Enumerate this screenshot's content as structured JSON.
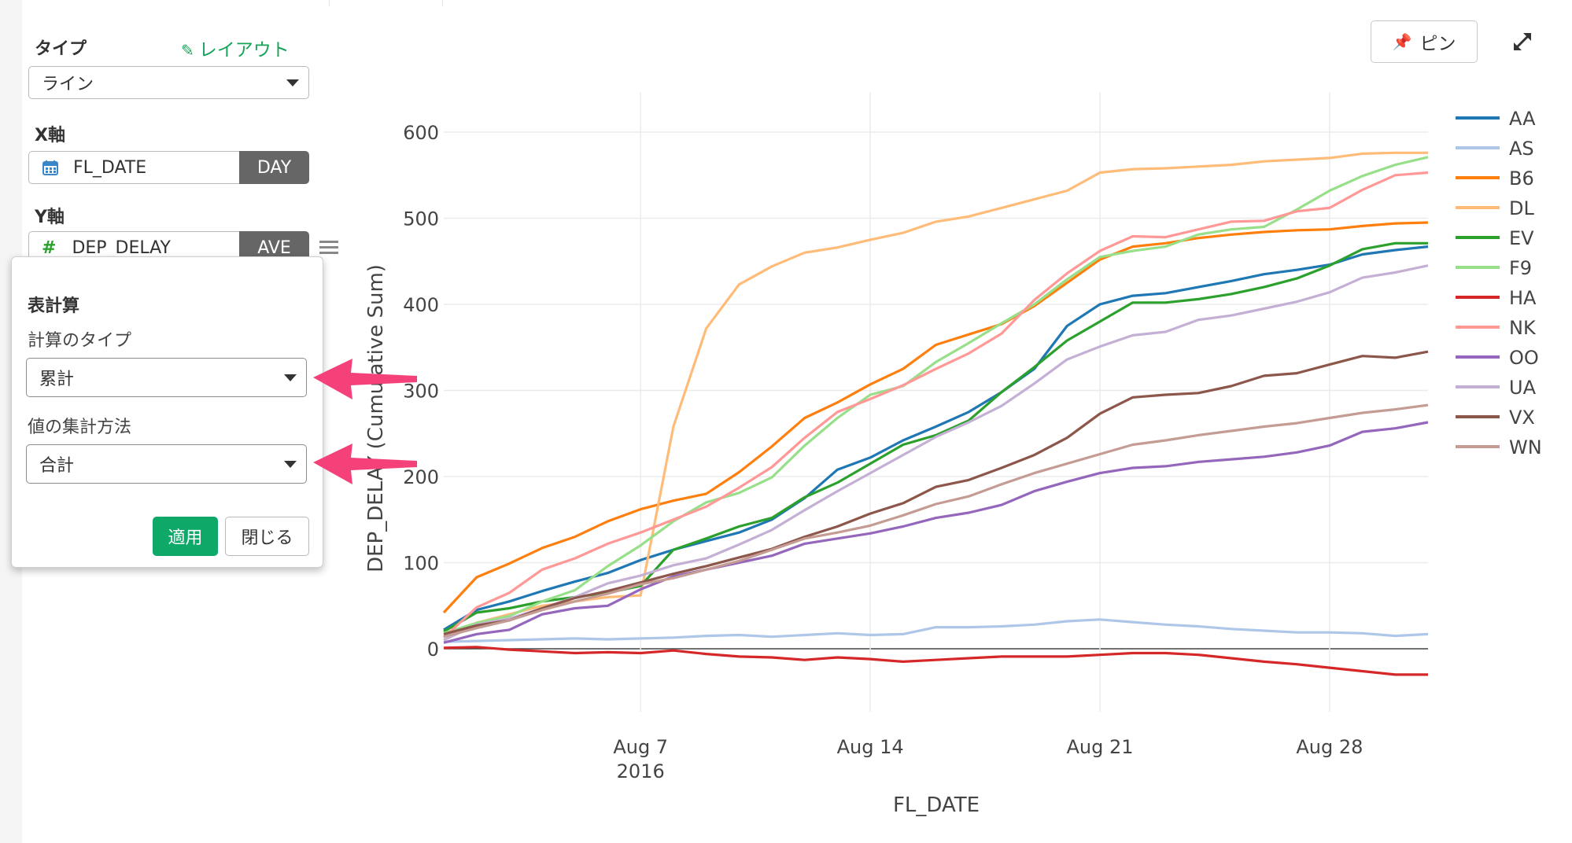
{
  "config": {
    "type_label": "タイプ",
    "layout_link": "レイアウト",
    "type_value": "ライン",
    "x_axis_label": "X軸",
    "x_field": "FL_DATE",
    "x_unit": "DAY",
    "y_axis_label": "Y軸",
    "y_field": "DEP_DELAY",
    "y_agg": "AVE"
  },
  "popup": {
    "title": "表計算",
    "calc_type_label": "計算のタイプ",
    "calc_type_value": "累計",
    "agg_method_label": "値の集計方法",
    "agg_method_value": "合計",
    "apply_button": "適用",
    "close_button": "閉じる"
  },
  "toolbar": {
    "pin_label": "ピン"
  },
  "colors": {
    "accent_green": "#17a35a",
    "apply_button": "#0ea869",
    "arrow": "#f5417a"
  },
  "chart_data": {
    "type": "line",
    "xlabel": "FL_DATE",
    "ylabel": "DEP_DELAY (Cumulative Sum)",
    "x_ticks": [
      "Aug 7",
      "Aug 14",
      "Aug 21",
      "Aug 28"
    ],
    "x_tick_sublabel": "2016",
    "y_ticks": [
      0,
      100,
      200,
      300,
      400,
      500,
      600
    ],
    "ylim": [
      -40,
      600
    ],
    "x_range": [
      "2016-08-01",
      "2016-08-31"
    ],
    "grid": true,
    "legend_position": "right",
    "dates": [
      "2016-08-01",
      "2016-08-02",
      "2016-08-03",
      "2016-08-04",
      "2016-08-05",
      "2016-08-06",
      "2016-08-07",
      "2016-08-08",
      "2016-08-09",
      "2016-08-10",
      "2016-08-11",
      "2016-08-12",
      "2016-08-13",
      "2016-08-14",
      "2016-08-15",
      "2016-08-16",
      "2016-08-17",
      "2016-08-18",
      "2016-08-19",
      "2016-08-20",
      "2016-08-21",
      "2016-08-22",
      "2016-08-23",
      "2016-08-24",
      "2016-08-25",
      "2016-08-26",
      "2016-08-27",
      "2016-08-28",
      "2016-08-29",
      "2016-08-30",
      "2016-08-31"
    ],
    "series": [
      {
        "name": "AA",
        "color": "#1f77b4",
        "values": [
          22,
          45,
          55,
          67,
          78,
          88,
          103,
          115,
          125,
          135,
          150,
          175,
          208,
          222,
          242,
          258,
          275,
          298,
          325,
          375,
          400,
          410,
          413,
          420,
          427,
          435,
          440,
          446,
          458,
          463,
          467
        ]
      },
      {
        "name": "AS",
        "color": "#aec7e8",
        "values": [
          8,
          9,
          10,
          11,
          12,
          11,
          12,
          13,
          15,
          16,
          14,
          16,
          18,
          16,
          17,
          25,
          25,
          26,
          28,
          32,
          34,
          31,
          28,
          26,
          23,
          21,
          19,
          19,
          18,
          15,
          17
        ]
      },
      {
        "name": "B6",
        "color": "#ff7f0e",
        "values": [
          42,
          83,
          99,
          117,
          130,
          148,
          162,
          172,
          180,
          205,
          235,
          268,
          286,
          307,
          325,
          353,
          365,
          377,
          398,
          425,
          452,
          467,
          471,
          477,
          481,
          484,
          486,
          487,
          491,
          494,
          495
        ]
      },
      {
        "name": "DL",
        "color": "#ffbb78",
        "values": [
          15,
          30,
          40,
          50,
          55,
          60,
          62,
          258,
          372,
          423,
          444,
          460,
          466,
          475,
          483,
          496,
          502,
          512,
          522,
          532,
          553,
          557,
          558,
          560,
          562,
          566,
          568,
          570,
          575,
          576,
          576
        ]
      },
      {
        "name": "EV",
        "color": "#2ca02c",
        "values": [
          20,
          42,
          47,
          55,
          60,
          65,
          73,
          115,
          128,
          142,
          152,
          176,
          193,
          215,
          237,
          248,
          265,
          298,
          327,
          358,
          380,
          402,
          402,
          406,
          412,
          420,
          430,
          445,
          464,
          471,
          471
        ]
      },
      {
        "name": "F9",
        "color": "#98df8a",
        "values": [
          18,
          30,
          38,
          55,
          68,
          96,
          120,
          148,
          170,
          181,
          199,
          236,
          268,
          295,
          305,
          333,
          355,
          378,
          400,
          429,
          455,
          462,
          467,
          481,
          487,
          490,
          510,
          532,
          549,
          562,
          571
        ]
      },
      {
        "name": "HA",
        "color": "#d62728",
        "values": [
          1,
          2,
          -1,
          -3,
          -5,
          -4,
          -5,
          -2,
          -6,
          -9,
          -10,
          -13,
          -10,
          -12,
          -15,
          -13,
          -11,
          -9,
          -9,
          -9,
          -7,
          -5,
          -5,
          -7,
          -11,
          -15,
          -18,
          -22,
          -26,
          -30,
          -30
        ]
      },
      {
        "name": "NK",
        "color": "#ff9896",
        "values": [
          13,
          48,
          65,
          92,
          105,
          122,
          135,
          150,
          165,
          187,
          211,
          245,
          275,
          290,
          306,
          325,
          343,
          366,
          405,
          436,
          462,
          479,
          478,
          487,
          496,
          497,
          508,
          512,
          533,
          550,
          553
        ]
      },
      {
        "name": "OO",
        "color": "#9467bd",
        "values": [
          7,
          17,
          22,
          40,
          47,
          50,
          69,
          84,
          92,
          100,
          108,
          122,
          128,
          134,
          142,
          152,
          158,
          167,
          183,
          194,
          204,
          210,
          212,
          217,
          220,
          223,
          228,
          236,
          252,
          256,
          263
        ]
      },
      {
        "name": "UA",
        "color": "#c5b0d5",
        "values": [
          10,
          28,
          35,
          47,
          60,
          76,
          85,
          97,
          105,
          121,
          138,
          161,
          183,
          204,
          225,
          246,
          263,
          282,
          308,
          336,
          351,
          364,
          368,
          382,
          387,
          395,
          403,
          414,
          431,
          437,
          445
        ]
      },
      {
        "name": "VX",
        "color": "#8c564b",
        "values": [
          17,
          27,
          33,
          47,
          59,
          67,
          77,
          87,
          96,
          106,
          116,
          130,
          142,
          157,
          169,
          188,
          196,
          210,
          225,
          245,
          273,
          292,
          295,
          297,
          305,
          317,
          320,
          330,
          340,
          338,
          345
        ]
      },
      {
        "name": "WN",
        "color": "#c49c94",
        "values": [
          14,
          24,
          33,
          45,
          55,
          64,
          75,
          82,
          92,
          102,
          115,
          128,
          135,
          143,
          155,
          168,
          177,
          191,
          204,
          215,
          226,
          237,
          242,
          248,
          253,
          258,
          262,
          268,
          274,
          278,
          283
        ]
      }
    ]
  }
}
